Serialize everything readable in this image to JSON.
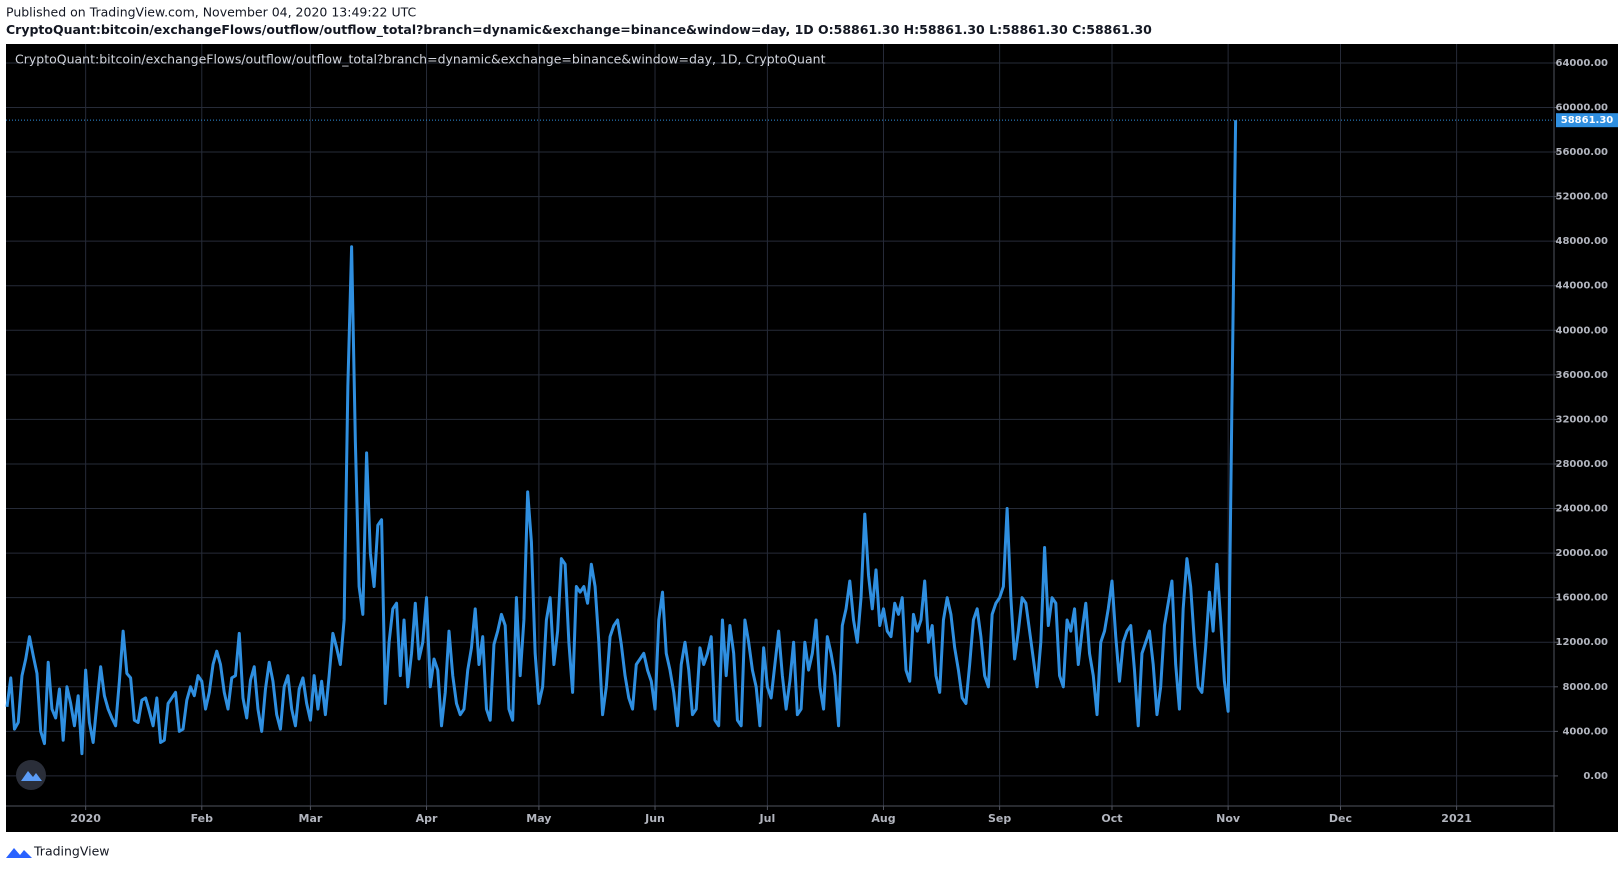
{
  "header": {
    "published": "Published on TradingView.com, November 04, 2020 13:49:22 UTC",
    "symbol": "CryptoQuant:bitcoin/exchangeFlows/outflow/outflow_total?branch=dynamic&exchange=binance&window=day, 1D",
    "ohlc": [
      "O:58861.30",
      "H:58861.30",
      "L:58861.30",
      "C:58861.30"
    ]
  },
  "footer": {
    "brand": "TradingView"
  },
  "chart_data": {
    "type": "line",
    "subtitle": "CryptoQuant:bitcoin/exchangeFlows/outflow/outflow_total?branch=dynamic&exchange=binance&window=day, 1D, CryptoQuant",
    "color": "#2f8fe0",
    "grid": true,
    "ylim": [
      -2700,
      65700
    ],
    "yticks": [
      {
        "value": 0,
        "label": "0.00"
      },
      {
        "value": 4000,
        "label": "4000.00"
      },
      {
        "value": 8000,
        "label": "8000.00"
      },
      {
        "value": 12000,
        "label": "12000.00"
      },
      {
        "value": 16000,
        "label": "16000.00"
      },
      {
        "value": 20000,
        "label": "20000.00"
      },
      {
        "value": 24000,
        "label": "24000.00"
      },
      {
        "value": 28000,
        "label": "28000.00"
      },
      {
        "value": 32000,
        "label": "32000.00"
      },
      {
        "value": 36000,
        "label": "36000.00"
      },
      {
        "value": 40000,
        "label": "40000.00"
      },
      {
        "value": 44000,
        "label": "44000.00"
      },
      {
        "value": 48000,
        "label": "48000.00"
      },
      {
        "value": 52000,
        "label": "52000.00"
      },
      {
        "value": 56000,
        "label": "56000.00"
      },
      {
        "value": 60000,
        "label": "60000.00"
      },
      {
        "value": 64000,
        "label": "64000.00"
      }
    ],
    "last_price": {
      "value": 58861.3,
      "label": "58861.30"
    },
    "categories": [
      null,
      null,
      null,
      null,
      null,
      null,
      null,
      null,
      null,
      null,
      null,
      null,
      null,
      null,
      null,
      null,
      null,
      null,
      null,
      null,
      null,
      "2020",
      null,
      null,
      null,
      null,
      null,
      null,
      null,
      null,
      null,
      null,
      null,
      null,
      null,
      null,
      null,
      null,
      null,
      null,
      null,
      null,
      null,
      null,
      null,
      null,
      null,
      null,
      null,
      null,
      null,
      null,
      "Feb",
      null,
      null,
      null,
      null,
      null,
      null,
      null,
      null,
      null,
      null,
      null,
      null,
      null,
      null,
      null,
      null,
      null,
      null,
      null,
      null,
      null,
      null,
      null,
      null,
      null,
      null,
      null,
      null,
      "Mar",
      null,
      null,
      null,
      null,
      null,
      null,
      null,
      null,
      null,
      null,
      null,
      null,
      null,
      null,
      null,
      null,
      null,
      null,
      null,
      null,
      null,
      null,
      null,
      null,
      null,
      null,
      null,
      null,
      null,
      null,
      "Apr",
      null,
      null,
      null,
      null,
      null,
      null,
      null,
      null,
      null,
      null,
      null,
      null,
      null,
      null,
      null,
      null,
      null,
      null,
      null,
      null,
      null,
      null,
      null,
      null,
      null,
      null,
      null,
      null,
      null,
      "May",
      null,
      null,
      null,
      null,
      null,
      null,
      null,
      null,
      null,
      null,
      null,
      null,
      null,
      null,
      null,
      null,
      null,
      null,
      null,
      null,
      null,
      null,
      null,
      null,
      null,
      null,
      null,
      null,
      null,
      null,
      "Jun",
      null,
      null,
      null,
      null,
      null,
      null,
      null,
      null,
      null,
      null,
      null,
      null,
      null,
      null,
      null,
      null,
      null,
      null,
      null,
      null,
      null,
      null,
      null,
      null,
      null,
      null,
      null,
      null,
      null,
      "Jul",
      null,
      null,
      null,
      null,
      null,
      null,
      null,
      null,
      null,
      null,
      null,
      null,
      null,
      null,
      null,
      null,
      null,
      null,
      null,
      null,
      null,
      null,
      null,
      null,
      null,
      null,
      null,
      null,
      null,
      null,
      "Aug",
      null,
      null,
      null,
      null,
      null,
      null,
      null,
      null,
      null,
      null,
      null,
      null,
      null,
      null,
      null,
      null,
      null,
      null,
      null,
      null,
      null,
      null,
      null,
      null,
      null,
      null,
      null,
      null,
      null,
      null,
      "Sep",
      null,
      null,
      null,
      null,
      null,
      null,
      null,
      null,
      null,
      null,
      null,
      null,
      null,
      null,
      null,
      null,
      null,
      null,
      null,
      null,
      null,
      null,
      null,
      null,
      null,
      null,
      null,
      null,
      null,
      "Oct",
      null,
      null,
      null,
      null,
      null,
      null,
      null,
      null,
      null,
      null,
      null,
      null,
      null,
      null,
      null,
      null,
      null,
      null,
      null,
      null,
      null,
      null,
      null,
      null,
      null,
      null,
      null,
      null,
      null,
      null,
      "Nov",
      null,
      null,
      null,
      null,
      null,
      null,
      null,
      null,
      null,
      null,
      null,
      null,
      null,
      null,
      null,
      null,
      null,
      null,
      null,
      null,
      null,
      null,
      null,
      null,
      null,
      null,
      null,
      null,
      null,
      "Dec",
      null,
      null,
      null,
      null,
      null,
      null,
      null,
      null,
      null,
      null,
      null,
      null,
      null,
      null,
      null,
      null,
      null,
      null,
      null,
      null,
      null,
      null,
      null,
      null,
      null,
      null,
      null,
      null,
      null,
      null,
      "2021",
      null,
      null,
      null,
      null,
      null,
      null,
      null,
      null,
      null,
      null,
      null,
      null,
      null,
      null,
      null,
      null,
      null,
      null,
      null,
      null,
      null,
      null,
      null,
      null,
      null,
      null
    ],
    "values": [
      6200,
      8800,
      4200,
      4800,
      9000,
      10500,
      12500,
      10800,
      9200,
      4000,
      2900,
      10200,
      6000,
      5200,
      7800,
      3200,
      8000,
      6500,
      4500,
      7200,
      2000,
      9500,
      4800,
      3000,
      6500,
      9800,
      7200,
      6000,
      5200,
      4500,
      8500,
      13000,
      9200,
      8800,
      5000,
      4800,
      6800,
      7000,
      5800,
      4500,
      7000,
      3000,
      3200,
      6500,
      7000,
      7500,
      4000,
      4200,
      6800,
      8000,
      7200,
      9000,
      8500,
      6000,
      7500,
      10000,
      11200,
      10000,
      7500,
      6000,
      8800,
      9000,
      12800,
      7000,
      5200,
      8600,
      9800,
      6000,
      4000,
      7800,
      10200,
      8500,
      5500,
      4200,
      8000,
      9000,
      6000,
      4500,
      7800,
      8800,
      6500,
      5000,
      9000,
      6000,
      8500,
      5500,
      9000,
      12800,
      11500,
      10000,
      14000,
      35000,
      47500,
      30000,
      17000,
      14500,
      29000,
      20000,
      17000,
      22500,
      23000,
      6500,
      12000,
      15000,
      15500,
      9000,
      14000,
      8000,
      11000,
      15500,
      10500,
      12000,
      16000,
      8000,
      10500,
      9500,
      4500,
      7500,
      13000,
      9000,
      6500,
      5500,
      6000,
      9500,
      11500,
      15000,
      10000,
      12500,
      6000,
      5000,
      11800,
      13000,
      14500,
      13500,
      6000,
      5000,
      16000,
      9000,
      14000,
      25500,
      21000,
      11000,
      6500,
      8000,
      14000,
      16000,
      10000,
      13000,
      19500,
      19000,
      12000,
      7500,
      17000,
      16500,
      17000,
      15500,
      19000,
      17000,
      12000,
      5500,
      8000,
      12500,
      13500,
      14000,
      11800,
      9000,
      7000,
      6000,
      10000,
      10500,
      11000,
      9500,
      8500,
      6000,
      14000,
      16500,
      11000,
      9500,
      7500,
      4500,
      10000,
      12000,
      9500,
      5500,
      6000,
      11500,
      10000,
      11000,
      12500,
      5000,
      4500,
      14000,
      9000,
      13500,
      11000,
      5000,
      4500,
      14000,
      12000,
      9500,
      8000,
      4500,
      11500,
      8000,
      7000,
      10000,
      13000,
      9000,
      6000,
      8500,
      12000,
      5500,
      6000,
      12000,
      9500,
      11000,
      14000,
      8000,
      6000,
      12500,
      11000,
      9000,
      4500,
      13500,
      15000,
      17500,
      14000,
      12000,
      16000,
      23500,
      18000,
      15000,
      18500,
      13500,
      15000,
      13000,
      12500,
      15500,
      14500,
      16000,
      9500,
      8500,
      14500,
      13000,
      14000,
      17500,
      12000,
      13500,
      9000,
      7500,
      14000,
      16000,
      14500,
      11500,
      9500,
      7000,
      6500,
      10000,
      14000,
      15000,
      12500,
      9000,
      8000,
      14500,
      15500,
      16000,
      17000,
      24000,
      16000,
      10500,
      13000,
      16000,
      15500,
      13000,
      10500,
      8000,
      12000,
      20500,
      13500,
      16000,
      15500,
      9000,
      8000,
      14000,
      13000,
      15000,
      10000,
      13000,
      15500,
      11000,
      9000,
      5500,
      12000,
      13000,
      15000,
      17500,
      12500,
      8500,
      12000,
      13000,
      13500,
      9500,
      4500,
      11000,
      12000,
      13000,
      10000,
      5500,
      8000,
      13500,
      15500,
      17500,
      10000,
      6000,
      15000,
      19500,
      17000,
      12000,
      8000,
      7500,
      11500,
      16500,
      13000,
      19000,
      14000,
      8500,
      5800,
      33000,
      58861.3,
      null,
      null,
      null,
      null,
      null,
      null,
      null,
      null,
      null,
      null,
      null,
      null,
      null,
      null,
      null,
      null,
      null,
      null,
      null,
      null,
      null,
      null,
      null,
      null,
      null,
      null,
      null,
      null,
      null,
      null,
      null,
      null,
      null,
      null,
      null,
      null,
      null,
      null,
      null,
      null,
      null,
      null,
      null,
      null,
      null,
      null,
      null,
      null,
      null,
      null,
      null,
      null,
      null,
      null,
      null,
      null,
      null,
      null,
      null,
      null,
      null,
      null,
      null,
      null,
      null,
      null,
      null,
      null,
      null,
      null,
      null,
      null,
      null,
      null,
      null,
      null,
      null,
      null,
      null,
      null,
      null,
      null,
      null,
      null,
      null
    ]
  }
}
